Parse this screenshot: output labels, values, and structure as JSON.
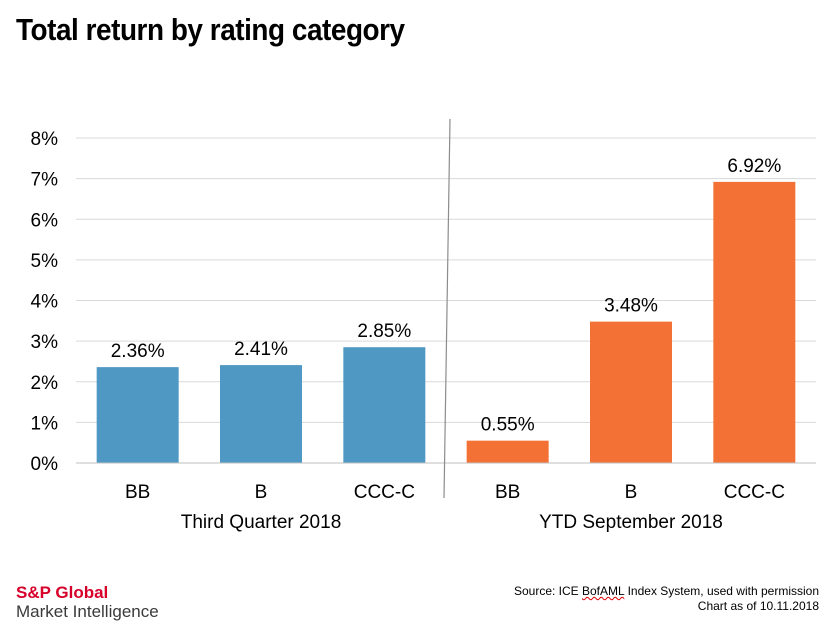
{
  "title": "Total return by rating category",
  "chart_data": {
    "type": "bar",
    "ylim": [
      0,
      8
    ],
    "y_ticks": [
      "0%",
      "1%",
      "2%",
      "3%",
      "4%",
      "5%",
      "6%",
      "7%",
      "8%"
    ],
    "grid": true,
    "groups": [
      {
        "label": "Third Quarter 2018",
        "color": "#4e98c3",
        "categories": [
          "BB",
          "B",
          "CCC-C"
        ],
        "values": [
          2.36,
          2.41,
          2.85
        ],
        "value_labels": [
          "2.36%",
          "2.41%",
          "2.85%"
        ]
      },
      {
        "label": "YTD September 2018",
        "color": "#f47135",
        "categories": [
          "BB",
          "B",
          "CCC-C"
        ],
        "values": [
          0.55,
          3.48,
          6.92
        ],
        "value_labels": [
          "0.55%",
          "3.48%",
          "6.92%"
        ]
      }
    ]
  },
  "footer": {
    "logo_line1": "S&P Global",
    "logo_line2": "Market Intelligence",
    "source_prefix": "Source: ICE ",
    "source_squiggle": "BofAML",
    "source_suffix": " Index System, used with permission",
    "chart_date": "Chart as of 10.11.2018"
  }
}
